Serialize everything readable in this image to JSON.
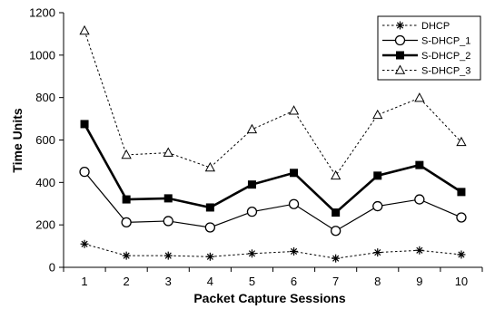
{
  "chart_data": {
    "type": "line",
    "title": "",
    "xlabel": "Packet Capture Sessions",
    "ylabel": "Time Units",
    "x": [
      "1",
      "2",
      "3",
      "4",
      "5",
      "6",
      "7",
      "8",
      "9",
      "10"
    ],
    "ylim": [
      0,
      1200
    ],
    "yticks": [
      "0",
      "200",
      "400",
      "600",
      "800",
      "1000",
      "1200"
    ],
    "grid": false,
    "legend_position": "top-right",
    "series": [
      {
        "name": "DHCP",
        "marker": "asterisk",
        "line": "dotted",
        "values": [
          110,
          55,
          55,
          50,
          65,
          75,
          42,
          70,
          80,
          60
        ]
      },
      {
        "name": "S-DHCP_1",
        "marker": "open-circle",
        "line": "solid",
        "values": [
          450,
          212,
          218,
          188,
          262,
          298,
          172,
          288,
          320,
          235
        ]
      },
      {
        "name": "S-DHCP_2",
        "marker": "filled-square",
        "line": "solid-bold",
        "values": [
          675,
          320,
          325,
          282,
          390,
          445,
          258,
          432,
          482,
          355
        ]
      },
      {
        "name": "S-DHCP_3",
        "marker": "open-triangle",
        "line": "dotted",
        "values": [
          1115,
          530,
          540,
          470,
          650,
          738,
          432,
          718,
          798,
          590
        ]
      }
    ]
  }
}
